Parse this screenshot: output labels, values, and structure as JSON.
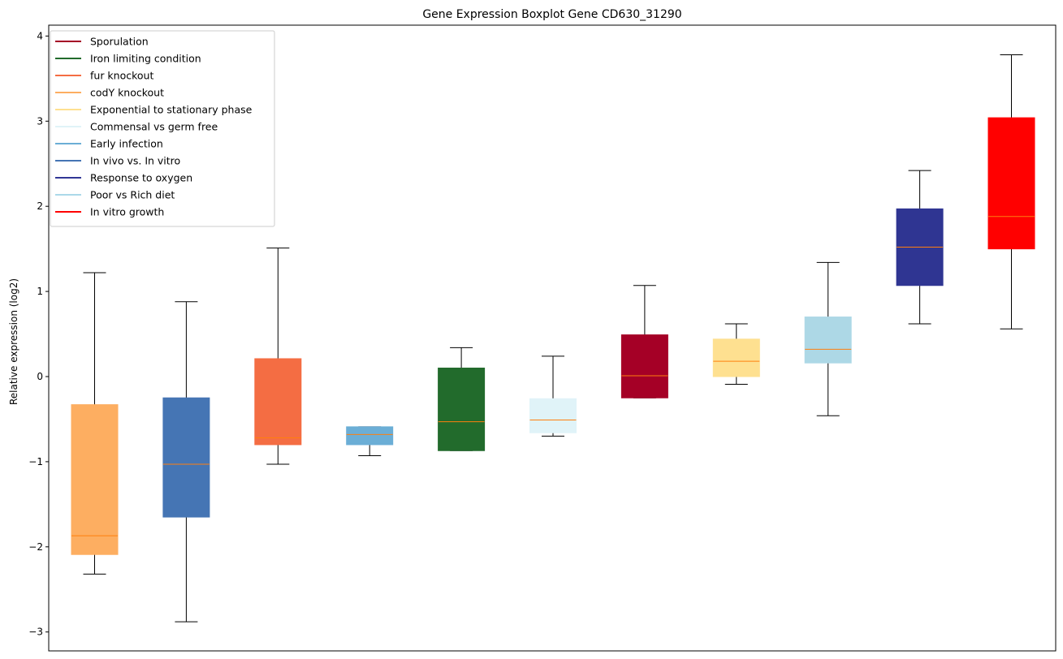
{
  "chart_data": {
    "type": "boxplot",
    "title": "Gene Expression Boxplot Gene CD630_31290",
    "xlabel": "",
    "ylabel": "Relative expression (log2)",
    "ylim": [
      -3.2,
      4.1
    ],
    "yticks": [
      -3,
      -2,
      -1,
      0,
      1,
      2,
      3,
      4
    ],
    "ytick_labels": [
      "−3",
      "−2",
      "−1",
      "0",
      "1",
      "2",
      "3",
      "4"
    ],
    "grid": false,
    "legend_position": "top-left",
    "legend": [
      {
        "label": "Sporulation",
        "color": "#a50026"
      },
      {
        "label": "Iron limiting condition",
        "color": "#226b2c"
      },
      {
        "label": "fur knockout",
        "color": "#f46d43"
      },
      {
        "label": "codY knockout",
        "color": "#fdae61"
      },
      {
        "label": "Exponential to stationary phase",
        "color": "#fee090"
      },
      {
        "label": "Commensal vs germ free",
        "color": "#e0f3f8"
      },
      {
        "label": "Early infection",
        "color": "#6baed6"
      },
      {
        "label": "In vivo vs. In vitro",
        "color": "#4575b4"
      },
      {
        "label": "Response to oxygen",
        "color": "#313695"
      },
      {
        "label": "Poor vs Rich diet",
        "color": "#abd9e9"
      },
      {
        "label": "In vitro growth",
        "color": "#ff0000"
      }
    ],
    "boxes": [
      {
        "group": "codY knockout",
        "color": "#fdae61",
        "whisker_low": -2.32,
        "q1": -2.09,
        "median": -1.87,
        "q3": -0.33,
        "whisker_high": 1.22
      },
      {
        "group": "In vivo vs. In vitro",
        "color": "#4575b4",
        "whisker_low": -2.88,
        "q1": -1.65,
        "median": -1.03,
        "q3": -0.25,
        "whisker_high": 0.88
      },
      {
        "group": "fur knockout",
        "color": "#f46d43",
        "whisker_low": -1.03,
        "q1": -0.8,
        "median": -0.72,
        "q3": 0.21,
        "whisker_high": 1.51
      },
      {
        "group": "Early infection",
        "color": "#6baed6",
        "whisker_low": -0.93,
        "q1": -0.8,
        "median": -0.68,
        "q3": -0.59,
        "whisker_high": -0.59
      },
      {
        "group": "Iron limiting condition",
        "color": "#226b2c",
        "whisker_low": -0.87,
        "q1": -0.87,
        "median": -0.53,
        "q3": 0.1,
        "whisker_high": 0.34
      },
      {
        "group": "Commensal vs germ free",
        "color": "#e0f3f8",
        "whisker_low": -0.7,
        "q1": -0.66,
        "median": -0.51,
        "q3": -0.26,
        "whisker_high": 0.24
      },
      {
        "group": "Sporulation",
        "color": "#a50026",
        "whisker_low": -0.25,
        "q1": -0.25,
        "median": 0.01,
        "q3": 0.49,
        "whisker_high": 1.07
      },
      {
        "group": "Exponential to stationary phase",
        "color": "#fee090",
        "whisker_low": -0.09,
        "q1": 0.0,
        "median": 0.18,
        "q3": 0.44,
        "whisker_high": 0.62
      },
      {
        "group": "Poor vs Rich diet",
        "color": "#add8e6",
        "whisker_low": -0.46,
        "q1": 0.16,
        "median": 0.32,
        "q3": 0.7,
        "whisker_high": 1.34
      },
      {
        "group": "Response to oxygen",
        "color": "#2f3592",
        "whisker_low": 0.62,
        "q1": 1.07,
        "median": 1.52,
        "q3": 1.97,
        "whisker_high": 2.42
      },
      {
        "group": "In vitro growth",
        "color": "#ff0000",
        "whisker_low": 0.56,
        "q1": 1.5,
        "median": 1.88,
        "q3": 3.04,
        "whisker_high": 3.78
      }
    ],
    "median_color": "#ff7f0e"
  }
}
